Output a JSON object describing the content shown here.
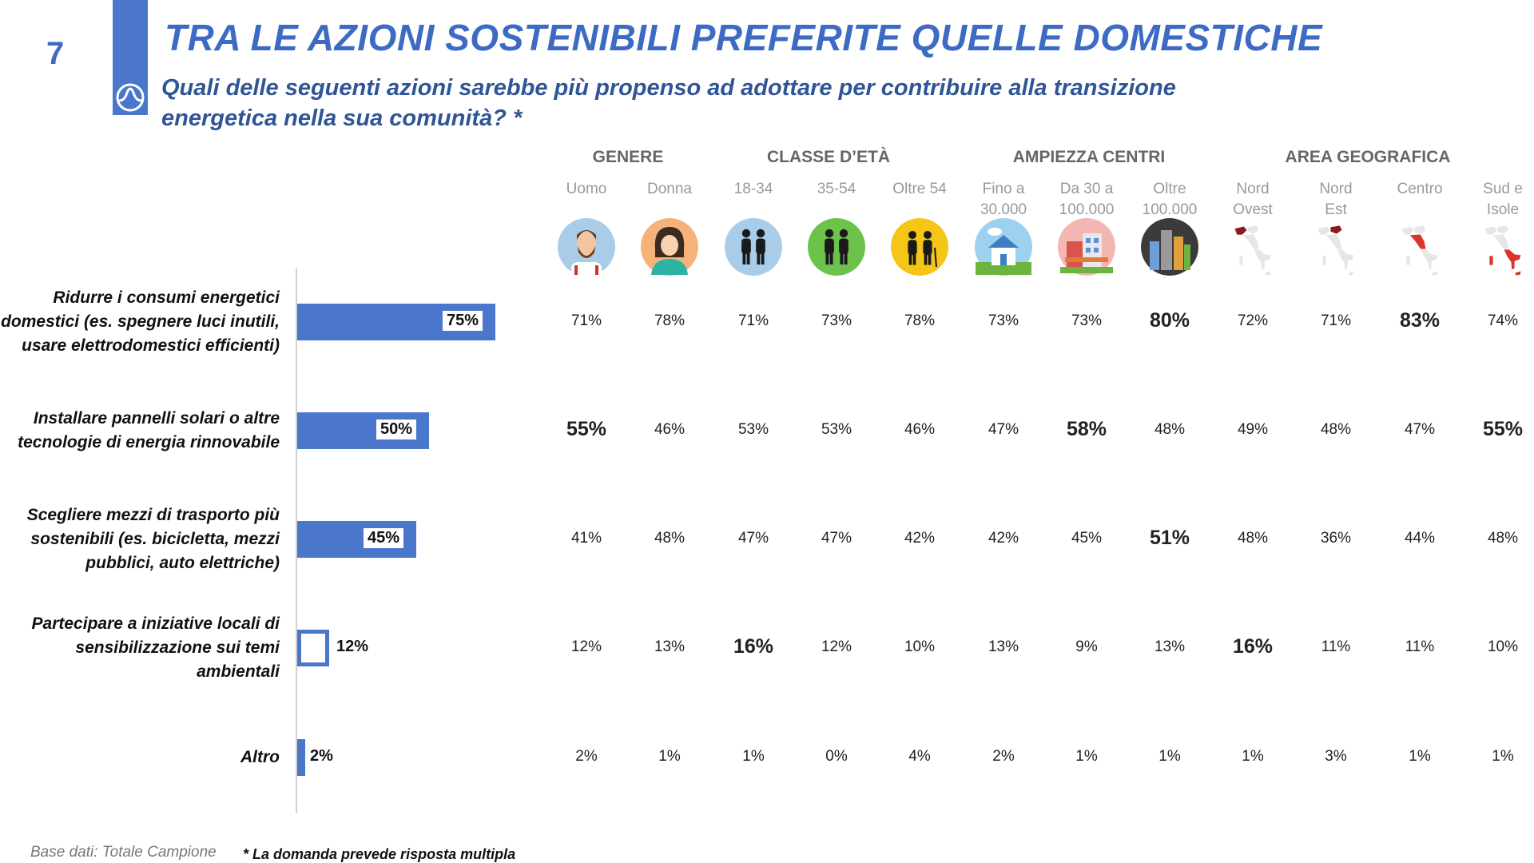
{
  "page_number": "7",
  "title": "TRA LE AZIONI SOSTENIBILI PREFERITE QUELLE DOMESTICHE",
  "subtitle": "Quali delle seguenti azioni sarebbe più propenso ad adottare per contribuire alla transizione energetica nella sua comunità? *",
  "groups": [
    {
      "label": "GENERE"
    },
    {
      "label": "CLASSE D’ETÀ"
    },
    {
      "label": "AMPIEZZA CENTRI"
    },
    {
      "label": "AREA GEOGRAFICA"
    }
  ],
  "columns": [
    {
      "line1": "Uomo",
      "line2": "",
      "icon": "man-icon"
    },
    {
      "line1": "Donna",
      "line2": "",
      "icon": "woman-icon"
    },
    {
      "line1": "18-34",
      "line2": "",
      "icon": "young-couple-icon"
    },
    {
      "line1": "35-54",
      "line2": "",
      "icon": "middle-age-couple-icon"
    },
    {
      "line1": "Oltre 54",
      "line2": "",
      "icon": "elderly-couple-icon"
    },
    {
      "line1": "Fino a",
      "line2": "30.000",
      "icon": "house-icon"
    },
    {
      "line1": "Da 30 a",
      "line2": "100.000",
      "icon": "town-icon"
    },
    {
      "line1": "Oltre",
      "line2": "100.000",
      "icon": "city-icon"
    },
    {
      "line1": "Nord",
      "line2": "Ovest",
      "icon": "italy-map-nw-icon"
    },
    {
      "line1": "Nord",
      "line2": "Est",
      "icon": "italy-map-ne-icon"
    },
    {
      "line1": "Centro",
      "line2": "",
      "icon": "italy-map-center-icon"
    },
    {
      "line1": "Sud e",
      "line2": "Isole",
      "icon": "italy-map-south-icon"
    }
  ],
  "rows": [
    {
      "label_lines": [
        "Ridurre i consumi energetici",
        "domestici (es. spegnere luci inutili,",
        "usare elettrodomestici efficienti)"
      ],
      "total_label": "75%",
      "cells": [
        "71%",
        "78%",
        "71%",
        "73%",
        "78%",
        "73%",
        "73%",
        "80%",
        "72%",
        "71%",
        "83%",
        "74%"
      ],
      "highlights": [
        7,
        10
      ]
    },
    {
      "label_lines": [
        "Installare pannelli solari o altre",
        "tecnologie di energia rinnovabile"
      ],
      "total_label": "50%",
      "cells": [
        "55%",
        "46%",
        "53%",
        "53%",
        "46%",
        "47%",
        "58%",
        "48%",
        "49%",
        "48%",
        "47%",
        "55%"
      ],
      "highlights": [
        0,
        6,
        11
      ]
    },
    {
      "label_lines": [
        "Scegliere mezzi di trasporto più",
        "sostenibili (es. bicicletta, mezzi",
        "pubblici, auto elettriche)"
      ],
      "total_label": "45%",
      "cells": [
        "41%",
        "48%",
        "47%",
        "47%",
        "42%",
        "42%",
        "45%",
        "51%",
        "48%",
        "36%",
        "44%",
        "48%"
      ],
      "highlights": [
        7
      ]
    },
    {
      "label_lines": [
        "Partecipare a iniziative locali di",
        "sensibilizzazione sui temi",
        "ambientali"
      ],
      "total_label": "12%",
      "cells": [
        "12%",
        "13%",
        "16%",
        "12%",
        "10%",
        "13%",
        "9%",
        "13%",
        "16%",
        "11%",
        "11%",
        "10%"
      ],
      "highlights": [
        2,
        8
      ]
    },
    {
      "label_lines": [
        "Altro"
      ],
      "total_label": "2%",
      "cells": [
        "2%",
        "1%",
        "1%",
        "0%",
        "4%",
        "2%",
        "1%",
        "1%",
        "1%",
        "3%",
        "1%",
        "1%"
      ],
      "highlights": []
    }
  ],
  "chart_data": {
    "type": "bar",
    "orientation": "horizontal",
    "title": "TRA LE AZIONI SOSTENIBILI PREFERITE QUELLE DOMESTICHE",
    "categories": [
      "Ridurre i consumi energetici domestici (es. spegnere luci inutili, usare elettrodomestici efficienti)",
      "Installare pannelli solari o altre tecnologie di energia rinnovabile",
      "Scegliere mezzi di trasporto più sostenibili (es. bicicletta, mezzi pubblici, auto elettriche)",
      "Partecipare a iniziative locali di sensibilizzazione sui temi ambientali",
      "Altro"
    ],
    "values": [
      75,
      50,
      45,
      12,
      2
    ],
    "unit": "%",
    "xlim": [
      0,
      100
    ],
    "bar_color": "#4a77cc"
  },
  "colors": {
    "accent": "#3d6bc4",
    "bar": "#4a77cc",
    "subtitle": "#2f5597"
  },
  "footer": {
    "base": "Base dati: Totale Campione",
    "note": "* La domanda prevede risposta multipla"
  }
}
